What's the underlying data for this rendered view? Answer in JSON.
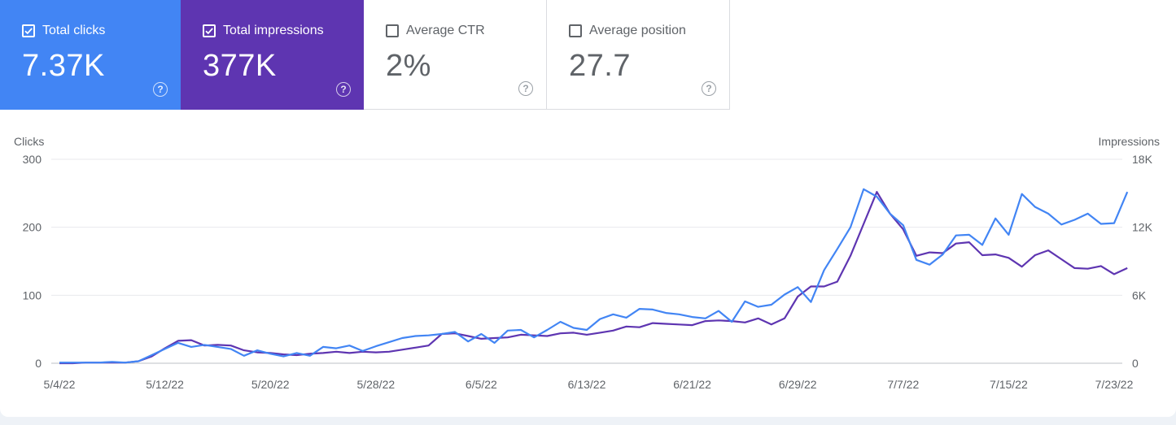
{
  "metrics": [
    {
      "label": "Total clicks",
      "value": "7.37K",
      "checked": true,
      "color": "#4285f4"
    },
    {
      "label": "Total impressions",
      "value": "377K",
      "checked": true,
      "color": "#5e35b1"
    },
    {
      "label": "Average CTR",
      "value": "2%",
      "checked": false
    },
    {
      "label": "Average position",
      "value": "27.7",
      "checked": false
    }
  ],
  "help_icon": "question-circle-icon",
  "chart_data": {
    "type": "line",
    "left_axis": {
      "title": "Clicks",
      "ticks": [
        "300",
        "200",
        "100",
        "0"
      ],
      "range": [
        0,
        300
      ]
    },
    "right_axis": {
      "title": "Impressions",
      "ticks": [
        "18K",
        "12K",
        "6K",
        "0"
      ],
      "range": [
        0,
        18000
      ]
    },
    "x_ticks": [
      "5/4/22",
      "5/12/22",
      "5/20/22",
      "5/28/22",
      "6/5/22",
      "6/13/22",
      "6/21/22",
      "6/29/22",
      "7/7/22",
      "7/15/22",
      "7/23/22"
    ],
    "x_range_days": [
      0,
      80
    ],
    "grid": true,
    "series": [
      {
        "name": "Total clicks",
        "axis": "left",
        "color": "#4285f4",
        "values": [
          1,
          1,
          1,
          1,
          2,
          1,
          3,
          12,
          21,
          30,
          24,
          27,
          24,
          21,
          11,
          19,
          14,
          10,
          15,
          11,
          24,
          22,
          26,
          18,
          25,
          31,
          37,
          40,
          41,
          43,
          46,
          32,
          43,
          30,
          48,
          49,
          38,
          49,
          61,
          52,
          49,
          65,
          72,
          67,
          80,
          79,
          74,
          72,
          68,
          66,
          77,
          61,
          91,
          83,
          86,
          101,
          112,
          90,
          137,
          168,
          200,
          256,
          245,
          220,
          203,
          152,
          145,
          160,
          188,
          189,
          174,
          213,
          189,
          249,
          230,
          220,
          204,
          211,
          220,
          205,
          206,
          252
        ]
      },
      {
        "name": "Total impressions",
        "axis": "left",
        "color": "#5e35b1",
        "values": [
          0,
          0,
          1,
          1,
          1,
          1,
          3,
          10,
          22,
          33,
          34,
          26,
          27,
          26,
          19,
          16,
          15,
          13,
          12,
          14,
          15,
          17,
          15,
          17,
          16,
          17,
          20,
          23,
          26,
          43,
          44,
          40,
          36,
          37,
          38,
          42,
          41,
          40,
          44,
          45,
          42,
          45,
          48,
          54,
          53,
          59,
          58,
          57,
          56,
          62,
          63,
          62,
          60,
          66,
          57,
          66,
          98,
          113,
          113,
          120,
          158,
          205,
          252,
          220,
          197,
          158,
          163,
          162,
          176,
          178,
          159,
          160,
          155,
          142,
          159,
          166,
          153,
          140,
          139,
          143,
          131,
          140
        ]
      }
    ]
  }
}
